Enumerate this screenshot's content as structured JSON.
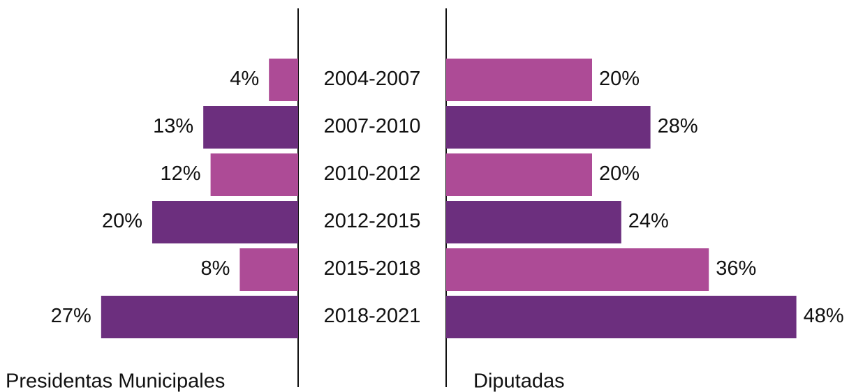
{
  "chart_data": {
    "type": "butterfly-bar",
    "categories": [
      "2004-2007",
      "2007-2010",
      "2010-2012",
      "2012-2015",
      "2015-2018",
      "2018-2021"
    ],
    "series": [
      {
        "name": "Presidentas Municipales",
        "values": [
          4,
          13,
          12,
          20,
          8,
          27
        ],
        "value_labels": [
          "4%",
          "13%",
          "12%",
          "20%",
          "8%",
          "27%"
        ],
        "colors": [
          "#ad4b96",
          "#6c2f7e",
          "#ad4b96",
          "#6c2f7e",
          "#ad4b96",
          "#6c2f7e"
        ]
      },
      {
        "name": "Diputadas",
        "values": [
          20,
          28,
          20,
          24,
          36,
          48
        ],
        "value_labels": [
          "20%",
          "28%",
          "20%",
          "24%",
          "36%",
          "48%"
        ],
        "colors": [
          "#ad4b96",
          "#6c2f7e",
          "#ad4b96",
          "#6c2f7e",
          "#ad4b96",
          "#6c2f7e"
        ]
      }
    ]
  }
}
